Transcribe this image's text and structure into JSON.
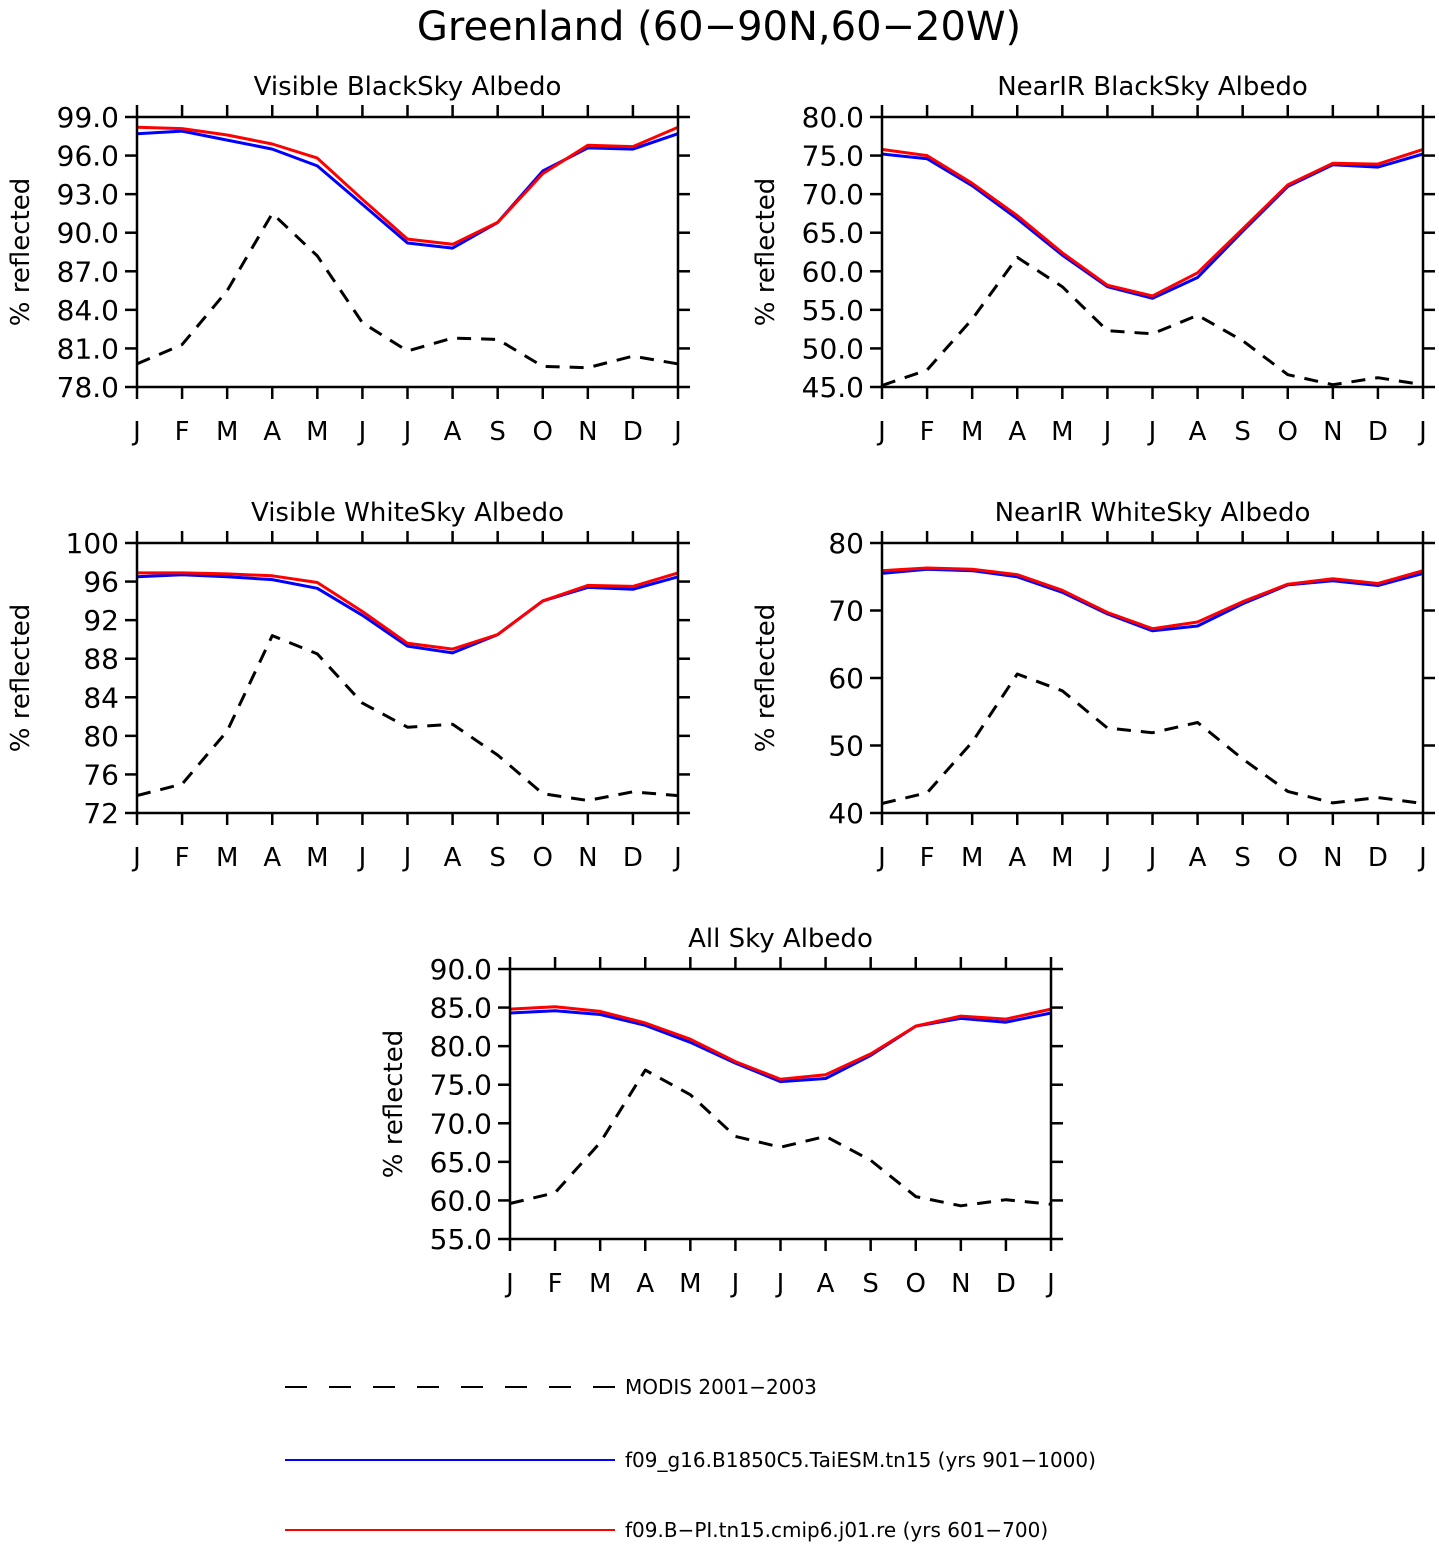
{
  "figure": {
    "title": "Greenland (60−90N,60−20W)"
  },
  "legend": [
    {
      "label": "MODIS 2001−2003",
      "color": "#000000",
      "style": "dashed"
    },
    {
      "label": "f09_g16.B1850C5.TaiESM.tn15 (yrs 901−1000)",
      "color": "#0000ff",
      "style": "solid"
    },
    {
      "label": "f09.B−PI.tn15.cmip6.j01.re (yrs 601−700)",
      "color": "#ff0000",
      "style": "solid"
    }
  ],
  "chart_data": [
    {
      "type": "line",
      "title": "Visible BlackSky Albedo",
      "xlabel": "",
      "ylabel": "% reflected",
      "categories": [
        "J",
        "F",
        "M",
        "A",
        "M",
        "J",
        "J",
        "A",
        "S",
        "O",
        "N",
        "D",
        "J"
      ],
      "ylim": [
        78,
        99
      ],
      "yticks": [
        "78.0",
        "81.0",
        "84.0",
        "87.0",
        "90.0",
        "93.0",
        "96.0",
        "99.0"
      ],
      "grid": false,
      "series": [
        {
          "name": "MODIS 2001−2003",
          "color": "#000000",
          "dashed": true,
          "values": [
            79.8,
            81.3,
            85.5,
            91.5,
            88.2,
            83.0,
            80.8,
            81.8,
            81.7,
            79.6,
            79.5,
            80.4,
            79.8
          ]
        },
        {
          "name": "f09_g16.B1850C5.TaiESM.tn15 (yrs 901−1000)",
          "color": "#0000ff",
          "dashed": false,
          "values": [
            97.7,
            97.9,
            97.2,
            96.5,
            95.2,
            92.2,
            89.2,
            88.8,
            90.8,
            94.8,
            96.6,
            96.5,
            97.7
          ]
        },
        {
          "name": "f09.B−PI.tn15.cmip6.j01.re (yrs 601−700)",
          "color": "#ff0000",
          "dashed": false,
          "values": [
            98.2,
            98.1,
            97.6,
            96.9,
            95.8,
            92.6,
            89.5,
            89.1,
            90.8,
            94.6,
            96.8,
            96.7,
            98.2
          ]
        }
      ]
    },
    {
      "type": "line",
      "title": "NearIR BlackSky Albedo",
      "xlabel": "",
      "ylabel": "% reflected",
      "categories": [
        "J",
        "F",
        "M",
        "A",
        "M",
        "J",
        "J",
        "A",
        "S",
        "O",
        "N",
        "D",
        "J"
      ],
      "ylim": [
        45,
        80
      ],
      "yticks": [
        "45.0",
        "50.0",
        "55.0",
        "60.0",
        "65.0",
        "70.0",
        "75.0",
        "80.0"
      ],
      "grid": false,
      "series": [
        {
          "name": "MODIS 2001−2003",
          "color": "#000000",
          "dashed": true,
          "values": [
            45.2,
            47.2,
            53.8,
            61.8,
            58.0,
            52.3,
            51.9,
            54.3,
            51.0,
            46.6,
            45.3,
            46.2,
            45.3
          ]
        },
        {
          "name": "f09_g16.B1850C5.TaiESM.tn15 (yrs 901−1000)",
          "color": "#0000ff",
          "dashed": false,
          "values": [
            75.2,
            74.6,
            71.1,
            66.8,
            62.1,
            58.0,
            56.5,
            59.2,
            65.2,
            71.0,
            73.8,
            73.5,
            75.2
          ]
        },
        {
          "name": "f09.B−PI.tn15.cmip6.j01.re (yrs 601−700)",
          "color": "#ff0000",
          "dashed": false,
          "values": [
            75.8,
            75.0,
            71.4,
            67.2,
            62.4,
            58.2,
            56.8,
            59.8,
            65.5,
            71.2,
            74.0,
            73.9,
            75.8
          ]
        }
      ]
    },
    {
      "type": "line",
      "title": "Visible WhiteSky Albedo",
      "xlabel": "",
      "ylabel": "% reflected",
      "categories": [
        "J",
        "F",
        "M",
        "A",
        "M",
        "J",
        "J",
        "A",
        "S",
        "O",
        "N",
        "D",
        "J"
      ],
      "ylim": [
        72,
        100
      ],
      "yticks": [
        "72",
        "76",
        "80",
        "84",
        "88",
        "92",
        "96",
        "100"
      ],
      "grid": false,
      "series": [
        {
          "name": "MODIS 2001−2003",
          "color": "#000000",
          "dashed": true,
          "values": [
            73.8,
            75.0,
            80.5,
            90.4,
            88.5,
            83.4,
            80.9,
            81.2,
            78.0,
            74.0,
            73.3,
            74.2,
            73.8
          ]
        },
        {
          "name": "f09_g16.B1850C5.TaiESM.tn15 (yrs 901−1000)",
          "color": "#0000ff",
          "dashed": false,
          "values": [
            96.5,
            96.7,
            96.5,
            96.2,
            95.3,
            92.5,
            89.3,
            88.6,
            90.5,
            94.0,
            95.4,
            95.2,
            96.5
          ]
        },
        {
          "name": "f09.B−PI.tn15.cmip6.j01.re (yrs 601−700)",
          "color": "#ff0000",
          "dashed": false,
          "values": [
            96.9,
            96.9,
            96.8,
            96.6,
            95.9,
            92.9,
            89.6,
            89.0,
            90.5,
            94.0,
            95.6,
            95.5,
            96.9
          ]
        }
      ]
    },
    {
      "type": "line",
      "title": "NearIR WhiteSky Albedo",
      "xlabel": "",
      "ylabel": "% reflected",
      "categories": [
        "J",
        "F",
        "M",
        "A",
        "M",
        "J",
        "J",
        "A",
        "S",
        "O",
        "N",
        "D",
        "J"
      ],
      "ylim": [
        40,
        80
      ],
      "yticks": [
        "40",
        "50",
        "60",
        "70",
        "80"
      ],
      "grid": false,
      "series": [
        {
          "name": "MODIS 2001−2003",
          "color": "#000000",
          "dashed": true,
          "values": [
            41.4,
            43.0,
            50.5,
            60.6,
            58.1,
            52.6,
            51.9,
            53.4,
            48.0,
            43.2,
            41.5,
            42.3,
            41.4
          ]
        },
        {
          "name": "f09_g16.B1850C5.TaiESM.tn15 (yrs 901−1000)",
          "color": "#0000ff",
          "dashed": false,
          "values": [
            75.5,
            76.1,
            75.9,
            75.0,
            72.7,
            69.5,
            67.0,
            67.7,
            71.0,
            73.8,
            74.4,
            73.7,
            75.5
          ]
        },
        {
          "name": "f09.B−PI.tn15.cmip6.j01.re (yrs 601−700)",
          "color": "#ff0000",
          "dashed": false,
          "values": [
            75.9,
            76.3,
            76.1,
            75.3,
            73.0,
            69.7,
            67.3,
            68.3,
            71.3,
            73.9,
            74.7,
            74.0,
            75.9
          ]
        }
      ]
    },
    {
      "type": "line",
      "title": "All Sky Albedo",
      "xlabel": "",
      "ylabel": "% reflected",
      "categories": [
        "J",
        "F",
        "M",
        "A",
        "M",
        "J",
        "J",
        "A",
        "S",
        "O",
        "N",
        "D",
        "J"
      ],
      "ylim": [
        55,
        90
      ],
      "yticks": [
        "55.0",
        "60.0",
        "65.0",
        "70.0",
        "75.0",
        "80.0",
        "85.0",
        "90.0"
      ],
      "grid": false,
      "series": [
        {
          "name": "MODIS 2001−2003",
          "color": "#000000",
          "dashed": true,
          "values": [
            59.6,
            61.0,
            67.5,
            76.9,
            73.7,
            68.3,
            66.9,
            68.3,
            65.2,
            60.5,
            59.3,
            60.1,
            59.5
          ]
        },
        {
          "name": "f09_g16.B1850C5.TaiESM.tn15 (yrs 901−1000)",
          "color": "#0000ff",
          "dashed": false,
          "values": [
            84.3,
            84.6,
            84.1,
            82.7,
            80.5,
            77.8,
            75.4,
            75.8,
            78.8,
            82.6,
            83.6,
            83.1,
            84.3
          ]
        },
        {
          "name": "f09.B−PI.tn15.cmip6.j01.re (yrs 601−700)",
          "color": "#ff0000",
          "dashed": false,
          "values": [
            84.8,
            85.1,
            84.5,
            83.0,
            80.9,
            78.0,
            75.7,
            76.3,
            79.0,
            82.6,
            83.9,
            83.5,
            84.8
          ]
        }
      ]
    }
  ]
}
